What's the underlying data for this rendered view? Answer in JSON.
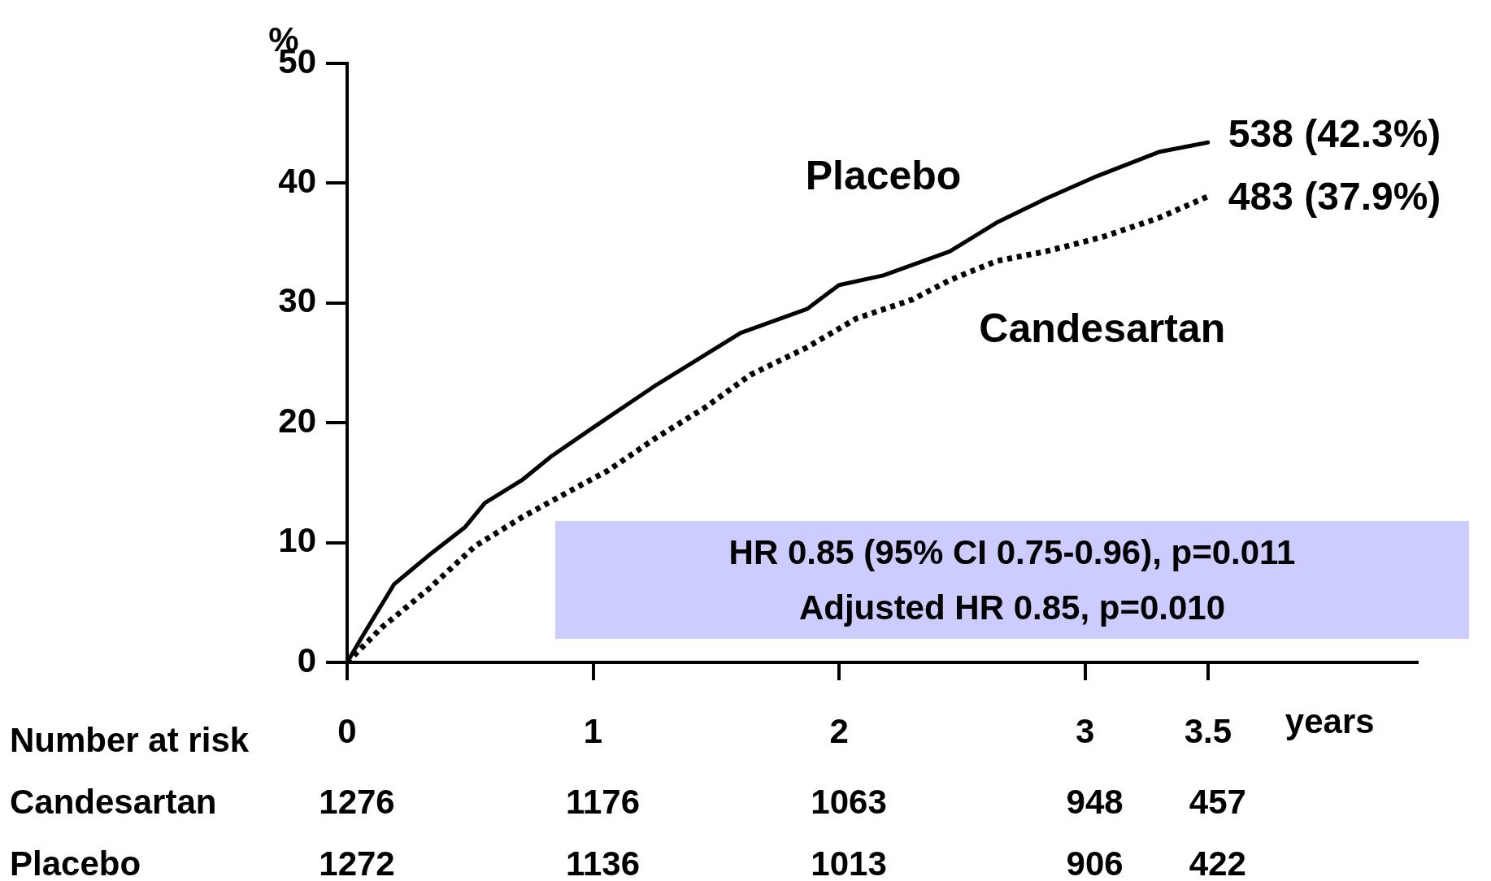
{
  "chart_data": {
    "type": "line",
    "ylabel": "%",
    "xlabel": "years",
    "xlim": [
      0,
      4.35
    ],
    "xticks": [
      0,
      1,
      2,
      3,
      3.5
    ],
    "ylim": [
      0,
      50
    ],
    "yticks": [
      0,
      10,
      20,
      30,
      40,
      50
    ],
    "grid": false,
    "legend": false,
    "marker": "none",
    "series": [
      {
        "name": "Placebo",
        "color": "#000000",
        "line_style": "solid",
        "x": [
          0,
          0.06,
          0.19,
          0.33,
          0.48,
          0.56,
          0.71,
          0.83,
          1.0,
          1.26,
          1.45,
          1.6,
          1.87,
          2.0,
          2.18,
          2.45,
          2.64,
          2.84,
          3.05,
          3.3,
          3.5
        ],
        "values": [
          0,
          2.1,
          6.5,
          8.9,
          11.3,
          13.3,
          15.2,
          17.2,
          19.6,
          23.2,
          25.6,
          27.5,
          29.5,
          31.5,
          32.3,
          34.3,
          36.7,
          38.7,
          40.6,
          42.6,
          43.4
        ]
      },
      {
        "name": "Candesartan",
        "color": "#000000",
        "line_style": "dotted",
        "x": [
          0,
          0.14,
          0.33,
          0.52,
          0.71,
          0.95,
          1.06,
          1.26,
          1.45,
          1.64,
          1.87,
          2.07,
          2.3,
          2.45,
          2.64,
          2.84,
          3.07,
          3.3,
          3.5
        ],
        "values": [
          0,
          2.9,
          6.1,
          9.7,
          12.1,
          14.8,
          16.0,
          18.8,
          21.2,
          24.0,
          26.3,
          28.7,
          30.3,
          31.9,
          33.5,
          34.3,
          35.5,
          37.1,
          38.9
        ]
      }
    ],
    "annotations": [
      {
        "text": "538 (42.3%)",
        "x": 3.5,
        "y": 43.4
      },
      {
        "text": "483 (37.9%)",
        "x": 3.5,
        "y": 38.9
      },
      "HR 0.85  (95% CI 0.75-0.96), p=0.011",
      "Adjusted HR 0.85, p=0.010",
      "Number at risk",
      "Candesartan",
      "1276",
      "1176",
      "1063",
      "948",
      "457",
      "Placebo",
      "1272",
      "1136",
      "1013",
      "906",
      "422"
    ]
  }
}
